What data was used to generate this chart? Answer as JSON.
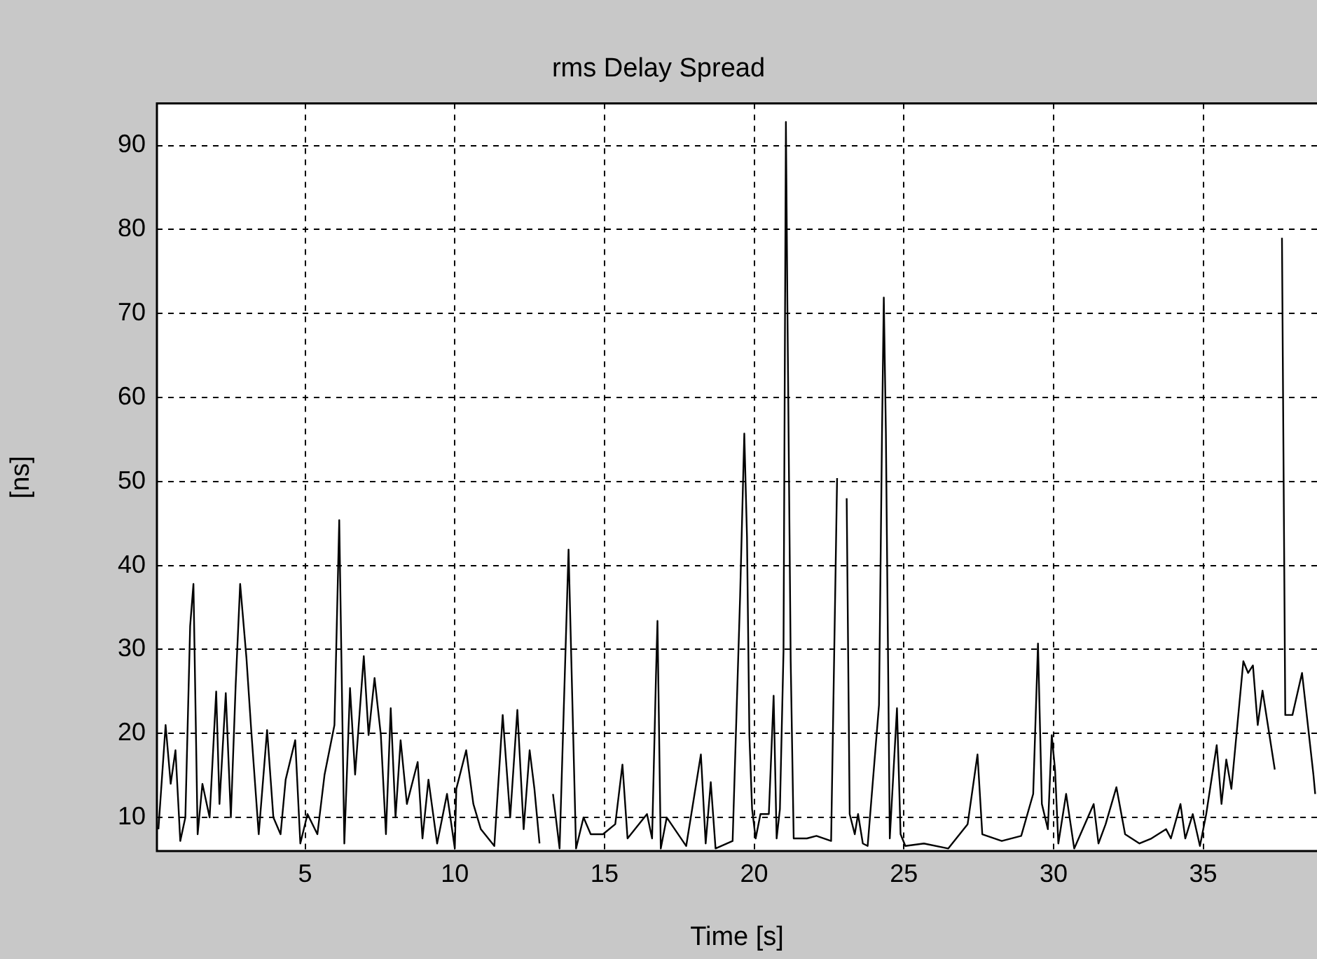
{
  "chart_data": {
    "type": "line",
    "title": "rms Delay Spread",
    "xlabel": "Time [s]",
    "ylabel": "[ns]",
    "xlim": [
      0.05,
      38.8
    ],
    "xticks": [
      5,
      10,
      15,
      20,
      25,
      30,
      35
    ],
    "ylim": [
      6,
      95
    ],
    "yticks": [
      10,
      20,
      30,
      40,
      50,
      60,
      70,
      80,
      90
    ],
    "grid": true,
    "legend": false,
    "marker": "none",
    "line_style": "solid",
    "series": [
      {
        "color": "#000000",
        "x": [
          0.1,
          0.34,
          0.51,
          0.67,
          0.83,
          1.0,
          1.16,
          1.27,
          1.41,
          1.57,
          1.81,
          2.03,
          2.14,
          2.35,
          2.52,
          2.68,
          2.83,
          3.04,
          3.2,
          3.45,
          3.73,
          3.94,
          4.18,
          4.35,
          4.67,
          4.84,
          5.08,
          5.41,
          5.65,
          5.98,
          6.14,
          6.31,
          6.5,
          6.67,
          6.96,
          7.12,
          7.32,
          7.53,
          7.7,
          7.86,
          8.02,
          8.19,
          8.4,
          8.76,
          8.92,
          9.12,
          9.41,
          9.74,
          10.0,
          10.05,
          10.38,
          10.62,
          10.87,
          11.32,
          11.6,
          11.85,
          12.09,
          12.3,
          12.5,
          12.66,
          12.83,
          12.91,
          13.15,
          13.28,
          13.5,
          13.8,
          14.05,
          14.3,
          14.54,
          14.95,
          15.36,
          15.6,
          15.77,
          16.42,
          16.59,
          16.72,
          16.77,
          16.88,
          17.08,
          17.73,
          18.22,
          18.38,
          18.55,
          18.71,
          19.28,
          19.53,
          19.67,
          19.76,
          19.84,
          19.93,
          20.05,
          20.21,
          20.49,
          20.65,
          20.75,
          20.86,
          20.98,
          21.06,
          21.11,
          21.22,
          21.32,
          21.76,
          22.08,
          22.57,
          22.77,
          22.87,
          23.0,
          23.09,
          23.19,
          23.36,
          23.47,
          23.63,
          23.79,
          24.17,
          24.27,
          24.33,
          24.4,
          24.53,
          24.77,
          24.89,
          25.05,
          25.67,
          26.48,
          27.13,
          27.46,
          27.62,
          28.27,
          28.92,
          29.32,
          29.48,
          29.61,
          29.81,
          29.94,
          30.05,
          30.16,
          30.42,
          30.69,
          31.34,
          31.5,
          31.74,
          32.1,
          32.39,
          32.87,
          33.27,
          33.76,
          33.92,
          34.24,
          34.4,
          34.65,
          34.89,
          35.1,
          35.45,
          35.61,
          35.77,
          35.94,
          36.34,
          36.5,
          36.66,
          36.82,
          36.98,
          37.39,
          37.47,
          37.55,
          37.63,
          37.74,
          37.98,
          38.3,
          38.68,
          38.74
        ],
        "values": [
          8.6,
          21,
          14,
          18,
          7.2,
          10,
          32.8,
          37.8,
          8,
          14,
          10,
          25,
          11.6,
          24.8,
          10,
          25.7,
          37.8,
          29,
          20.4,
          8,
          20.4,
          10,
          8,
          14.5,
          19.2,
          6.9,
          10.4,
          8,
          15.1,
          21,
          45.4,
          6.9,
          25.4,
          15.1,
          29.2,
          19.8,
          26.6,
          19.8,
          8,
          23,
          10,
          19.2,
          11.6,
          16.6,
          7.5,
          14.5,
          6.9,
          12.8,
          6.3,
          13.4,
          18,
          11.6,
          8.6,
          6.6,
          22.2,
          10,
          22.8,
          8.6,
          18,
          13.4,
          6.9,
          null,
          null,
          12.8,
          6.3,
          41.9,
          6.3,
          10,
          8,
          8,
          9.2,
          16.3,
          7.5,
          10.4,
          7.5,
          26.9,
          33.4,
          6.3,
          10,
          6.6,
          17.5,
          6.9,
          14.2,
          6.3,
          7.2,
          36.3,
          55.7,
          43.4,
          19.8,
          11,
          7.5,
          10.4,
          10.4,
          24.5,
          7.5,
          11,
          29.8,
          92.8,
          71,
          28.6,
          7.5,
          7.5,
          7.8,
          7.2,
          50.4,
          null,
          null,
          48,
          10.4,
          8,
          10.4,
          6.9,
          6.6,
          23.4,
          55.7,
          71.9,
          55.7,
          7.5,
          23,
          8,
          6.6,
          6.9,
          6.3,
          9.2,
          17.5,
          8,
          7.2,
          7.8,
          12.8,
          30.7,
          11.6,
          8.6,
          19.8,
          15.7,
          6.9,
          12.8,
          6.3,
          11.6,
          6.9,
          9.2,
          13.6,
          8,
          6.9,
          7.5,
          8.6,
          7.5,
          11.6,
          7.5,
          10.4,
          6.6,
          10.4,
          18.6,
          11.6,
          16.9,
          13.4,
          28.6,
          27.2,
          28.1,
          21,
          25.1,
          15.7,
          null,
          null,
          79,
          22.2,
          22.2,
          27.2,
          15.1,
          12.8
        ]
      }
    ]
  }
}
